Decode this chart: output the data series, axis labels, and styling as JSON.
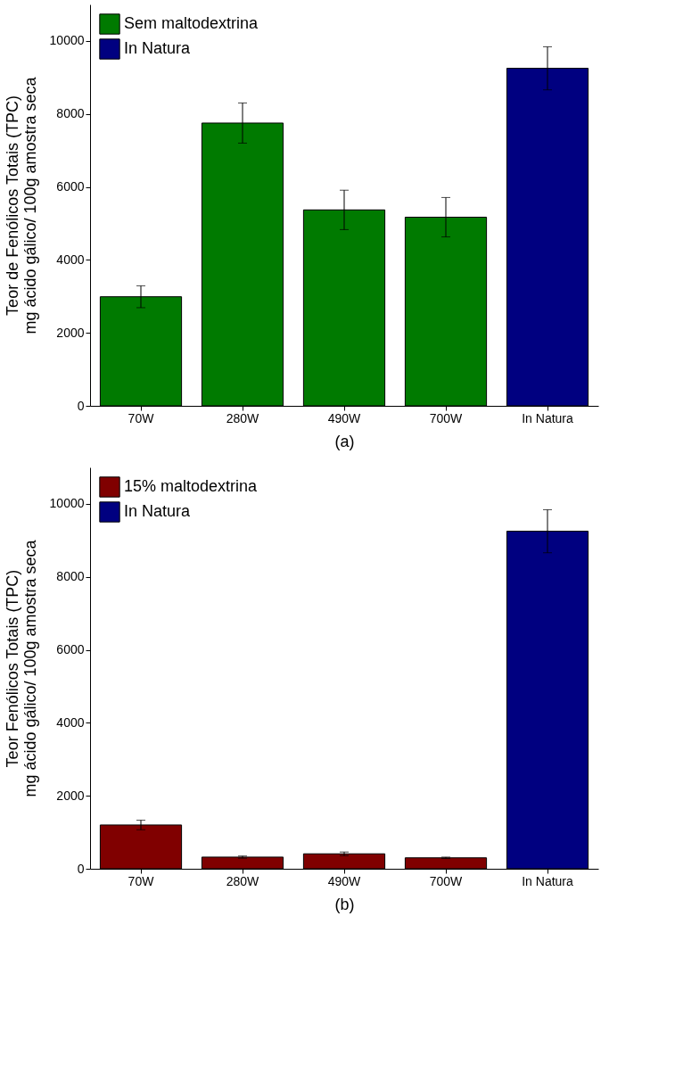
{
  "chart_data": [
    {
      "type": "bar",
      "xlabel": "(a)",
      "ylabel": "Teor de Fenólicos Totais (TPC)\nmg ácido gálico/ 100g amostra seca",
      "categories": [
        "70W",
        "280W",
        "490W",
        "700W",
        "In Natura"
      ],
      "ylim": [
        0,
        11000
      ],
      "yticks": [
        0,
        2000,
        4000,
        6000,
        8000,
        10000
      ],
      "grid": false,
      "legend": "top left",
      "series": [
        {
          "name": "Sem maltodextrina",
          "color": "#007a00",
          "values": [
            2990,
            7750,
            5370,
            5170,
            null
          ],
          "errors": [
            300,
            550,
            540,
            540,
            null
          ]
        },
        {
          "name": "In Natura",
          "color": "#000080",
          "values": [
            null,
            null,
            null,
            null,
            9250
          ],
          "errors": [
            null,
            null,
            null,
            null,
            590
          ]
        }
      ]
    },
    {
      "type": "bar",
      "xlabel": "(b)",
      "ylabel": "Teor Fenólicos Totais (TPC)\nmg ácido gálico/ 100g amostra seca",
      "categories": [
        "70W",
        "280W",
        "490W",
        "700W",
        "In Natura"
      ],
      "ylim": [
        0,
        11000
      ],
      "yticks": [
        0,
        2000,
        4000,
        6000,
        8000,
        10000
      ],
      "grid": false,
      "legend": "top left",
      "series": [
        {
          "name": "15% maltodextrina",
          "color": "#800000",
          "values": [
            1200,
            320,
            410,
            300,
            null
          ],
          "errors": [
            130,
            30,
            50,
            20,
            null
          ]
        },
        {
          "name": "In Natura",
          "color": "#000080",
          "values": [
            null,
            null,
            null,
            null,
            9250
          ],
          "errors": [
            null,
            null,
            null,
            null,
            590
          ]
        }
      ]
    }
  ]
}
